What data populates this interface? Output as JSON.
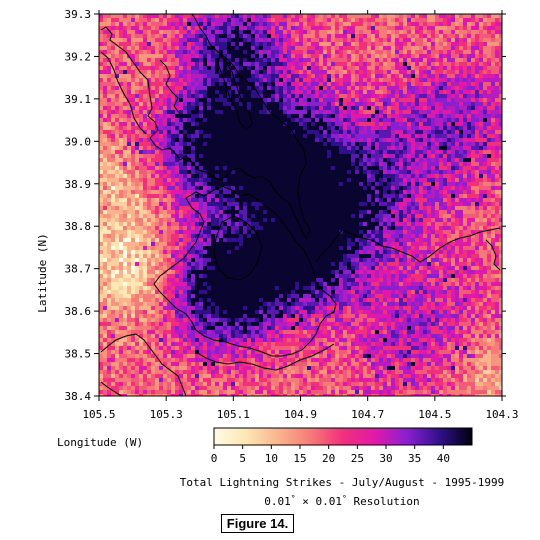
{
  "map": {
    "longitude_ticks": [
      "105.5",
      "105.3",
      "105.1",
      "104.9",
      "104.7",
      "104.5",
      "104.3"
    ],
    "latitude_ticks": [
      "38.4",
      "38.5",
      "38.6",
      "38.7",
      "38.8",
      "38.9",
      "39.0",
      "39.1",
      "39.2",
      "39.3"
    ],
    "x_axis_label": "Longitude (W)",
    "y_axis_label": "Latitude (N)",
    "extent": {
      "lon_west": 105.5,
      "lon_east": 104.3,
      "lat_south": 38.4,
      "lat_north": 39.3
    },
    "grid_resolution_deg": 0.01,
    "layers": [
      "lightning-strike-density-raster",
      "terrain-contour-lines"
    ]
  },
  "colorbar": {
    "ticks": [
      "0",
      "5",
      "10",
      "15",
      "20",
      "25",
      "30",
      "35",
      "40"
    ],
    "range": [
      0,
      45
    ],
    "colors": [
      "#fffbe6",
      "#fde7b4",
      "#f9b48e",
      "#f57b78",
      "#f0307a",
      "#e01aa8",
      "#8a1fd0",
      "#30108a",
      "#000010"
    ]
  },
  "captions": {
    "title": "Total Lightning Strikes - July/August - 1995-1999",
    "resolution_number": "0.01",
    "resolution_degree": "°",
    "resolution_times": "×",
    "resolution_suffix": "Resolution"
  },
  "figure_label": "Figure 14."
}
